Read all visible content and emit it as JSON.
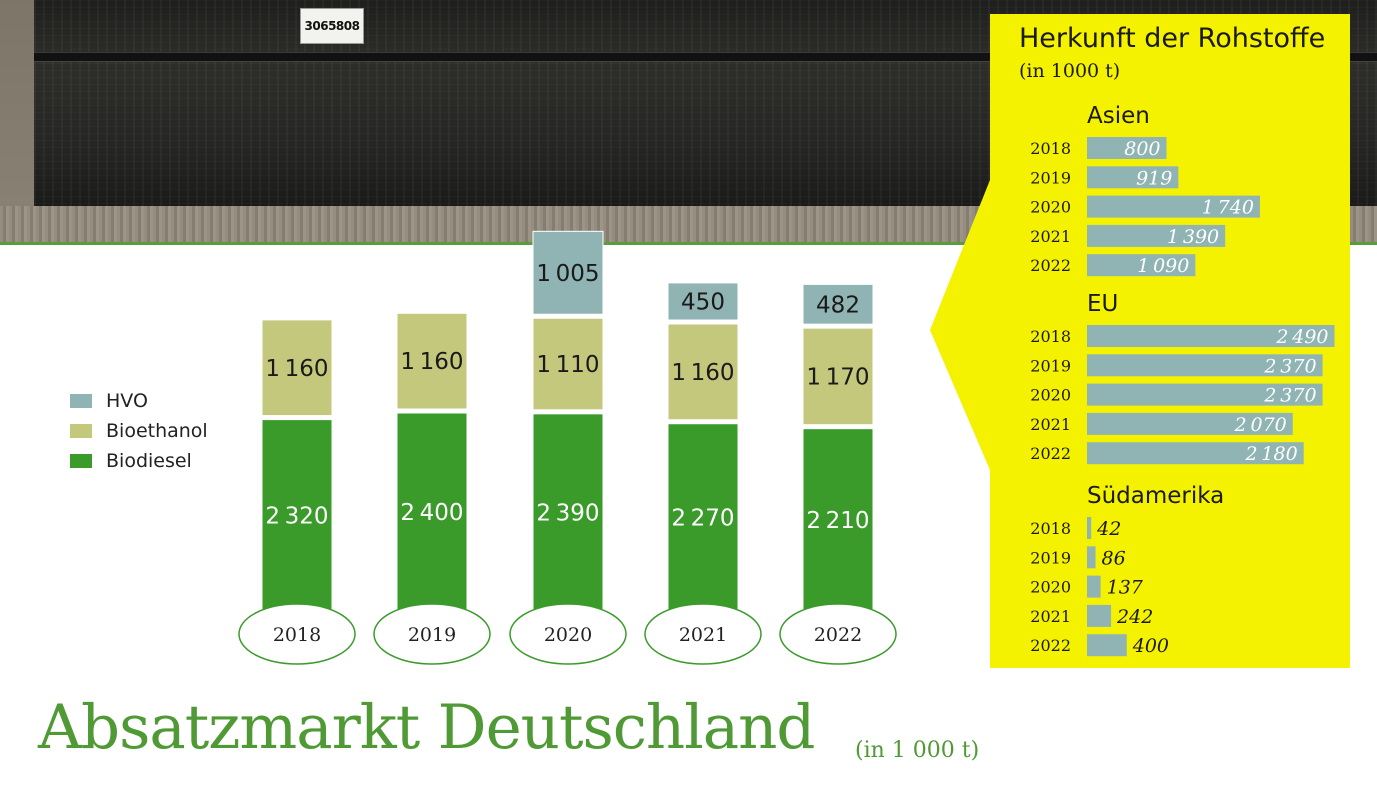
{
  "photo": {
    "sticker_text": "3065808"
  },
  "title": "Absatzmarkt Deutschland",
  "title_unit": "(in 1 000 t)",
  "legend": [
    {
      "label": "HVO",
      "color": "#8fb4b3"
    },
    {
      "label": "Bioethanol",
      "color": "#c4c87d"
    },
    {
      "label": "Biodiesel",
      "color": "#3a9a2a"
    }
  ],
  "chart_data": [
    {
      "type": "bar",
      "stacked": true,
      "categories": [
        "2018",
        "2019",
        "2020",
        "2021",
        "2022"
      ],
      "series": [
        {
          "name": "Biodiesel",
          "values": [
            2320,
            2400,
            2390,
            2270,
            2210
          ],
          "color": "#3a9a2a"
        },
        {
          "name": "Bioethanol",
          "values": [
            1160,
            1160,
            1110,
            1160,
            1170
          ],
          "color": "#c4c87d"
        },
        {
          "name": "HVO",
          "values": [
            0,
            0,
            1005,
            450,
            482
          ],
          "color": "#8fb4b3"
        }
      ],
      "legend_position": "left",
      "grid": false
    },
    {
      "type": "bar",
      "orientation": "horizontal",
      "title": "Herkunft der Rohstoffe",
      "subtitle": "(in 1000 t)",
      "groups": [
        {
          "name": "Asien",
          "categories": [
            "2018",
            "2019",
            "2020",
            "2021",
            "2022"
          ],
          "values": [
            800,
            919,
            1740,
            1390,
            1090
          ]
        },
        {
          "name": "EU",
          "categories": [
            "2018",
            "2019",
            "2020",
            "2021",
            "2022"
          ],
          "values": [
            2490,
            2370,
            2370,
            2070,
            2180
          ]
        },
        {
          "name": "Südamerika",
          "categories": [
            "2018",
            "2019",
            "2020",
            "2021",
            "2022"
          ],
          "values": [
            42,
            86,
            137,
            242,
            400
          ]
        }
      ],
      "bar_color": "#8fb4b3",
      "background": "#f5f200"
    }
  ]
}
